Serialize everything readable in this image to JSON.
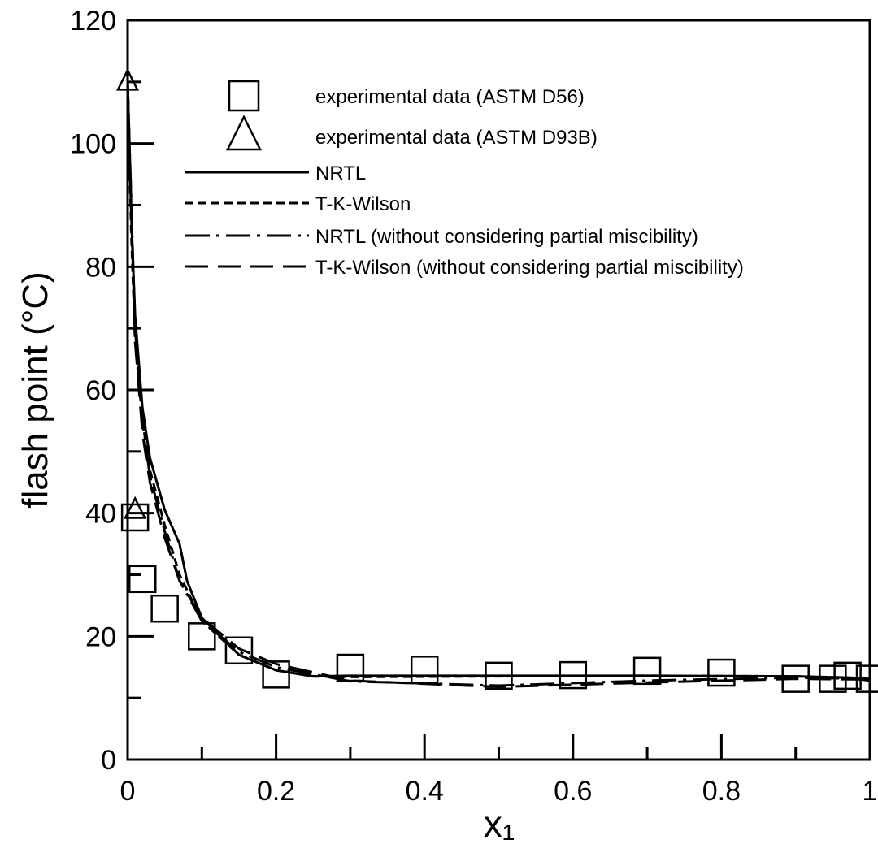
{
  "chart_data": {
    "type": "scatter-line",
    "xlabel": "x₁",
    "ylabel": "flash point (°C)",
    "xlim": [
      0,
      1
    ],
    "ylim": [
      0,
      120
    ],
    "xticks": [
      0,
      0.2,
      0.4,
      0.6,
      0.8,
      1
    ],
    "yticks": [
      0,
      20,
      40,
      60,
      80,
      100,
      120
    ],
    "xminor": [
      0.1,
      0.3,
      0.5,
      0.7,
      0.9
    ],
    "yminor": [
      10,
      30,
      50,
      70,
      90,
      110
    ],
    "series": [
      {
        "name": "experimental data (ASTM D56)",
        "marker": "square",
        "color": "#000000",
        "x": [
          0.01,
          0.02,
          0.05,
          0.1,
          0.15,
          0.2,
          0.3,
          0.4,
          0.5,
          0.6,
          0.7,
          0.8,
          0.9,
          0.95,
          0.97,
          1.0
        ],
        "values": [
          39.3,
          29.3,
          24.5,
          20,
          17.7,
          13.8,
          14.9,
          14.6,
          13.6,
          13.7,
          14.4,
          14.1,
          13.1,
          13.1,
          13.6,
          13.1
        ]
      },
      {
        "name": "experimental data (ASTM D93B)",
        "marker": "triangle",
        "color": "#000000",
        "x": [
          0,
          0.01
        ],
        "values": [
          110,
          40.5
        ]
      },
      {
        "name": "NRTL",
        "marker": "line",
        "dash": "none",
        "color": "#000000",
        "x": [
          0,
          0.005,
          0.01,
          0.02,
          0.03,
          0.05,
          0.07,
          0.08,
          0.1,
          0.15,
          0.2,
          0.25,
          0.3,
          0.5,
          0.7,
          0.9,
          0.97,
          1.0
        ],
        "values": [
          110,
          88,
          72,
          57,
          49,
          40.5,
          35,
          29,
          23,
          17,
          14.5,
          13.5,
          13.6,
          13.6,
          13.6,
          13.5,
          13.3,
          12.8
        ]
      },
      {
        "name": "T-K-Wilson",
        "marker": "line",
        "dash": "10,6",
        "color": "#000000",
        "x": [
          0,
          0.005,
          0.01,
          0.02,
          0.03,
          0.05,
          0.07,
          0.1,
          0.15,
          0.2,
          0.25,
          0.3,
          0.5,
          0.7,
          0.9,
          1.0
        ],
        "values": [
          110,
          85,
          68,
          55,
          47,
          38,
          30,
          22.5,
          17,
          14.5,
          13.5,
          13.4,
          13.5,
          13.6,
          13.5,
          13.2
        ]
      },
      {
        "name": "NRTL (without considering partial miscibility)",
        "marker": "line",
        "dash": "30,8,4,8",
        "color": "#000000",
        "x": [
          0,
          0.01,
          0.02,
          0.03,
          0.05,
          0.07,
          0.1,
          0.15,
          0.2,
          0.3,
          0.5,
          0.7,
          0.9,
          1.0
        ],
        "values": [
          110,
          70,
          55,
          46,
          37,
          29,
          22.5,
          17.5,
          15,
          12.7,
          12,
          12.8,
          13.3,
          13.1
        ]
      },
      {
        "name": "T-K-Wilson (without considering partial miscibility)",
        "marker": "line",
        "dash": "28,12",
        "color": "#000000",
        "x": [
          0,
          0.01,
          0.02,
          0.03,
          0.05,
          0.07,
          0.1,
          0.15,
          0.2,
          0.3,
          0.5,
          0.7,
          0.9,
          1.0
        ],
        "values": [
          110,
          68,
          53,
          45,
          36,
          29,
          23,
          18,
          15.5,
          12.8,
          11.8,
          12.5,
          13.1,
          13
        ]
      }
    ]
  }
}
